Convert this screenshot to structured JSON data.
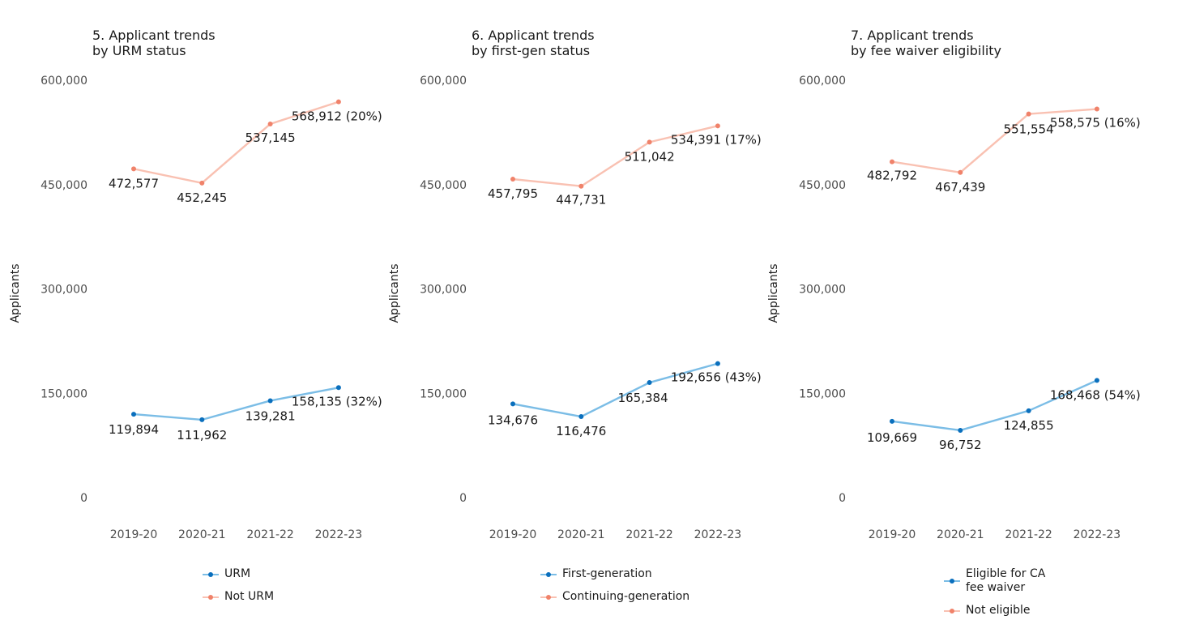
{
  "chart_data": [
    {
      "type": "line",
      "title": "5. Applicant trends\nby URM status",
      "xlabel": "",
      "ylabel": "Applicants",
      "categories": [
        "2019-20",
        "2020-21",
        "2021-22",
        "2022-23"
      ],
      "ylim": [
        0,
        600000
      ],
      "yticks": [
        0,
        150000,
        300000,
        450000,
        600000
      ],
      "ytick_labels": [
        "0",
        "150,000",
        "300,000",
        "450,000",
        "600,000"
      ],
      "series": [
        {
          "name": "URM",
          "color": "#7bbde6",
          "marker_color": "#0a6fbd",
          "values": [
            119894,
            111962,
            139281,
            158135
          ],
          "labels": [
            "119,894",
            "111,962",
            "139,281",
            "158,135 (32%)"
          ]
        },
        {
          "name": "Not URM",
          "color": "#f9c1b2",
          "marker_color": "#f0826a",
          "values": [
            472577,
            452245,
            537145,
            568912
          ],
          "labels": [
            "472,577",
            "452,245",
            "537,145",
            "568,912 (20%)"
          ]
        }
      ],
      "legend": "bottom"
    },
    {
      "type": "line",
      "title": "6. Applicant trends\nby first-gen status",
      "xlabel": "",
      "ylabel": "Applicants",
      "categories": [
        "2019-20",
        "2020-21",
        "2021-22",
        "2022-23"
      ],
      "ylim": [
        0,
        600000
      ],
      "yticks": [
        0,
        150000,
        300000,
        450000,
        600000
      ],
      "ytick_labels": [
        "0",
        "150,000",
        "300,000",
        "450,000",
        "600,000"
      ],
      "series": [
        {
          "name": "First-generation",
          "color": "#7bbde6",
          "marker_color": "#0a6fbd",
          "values": [
            134676,
            116476,
            165384,
            192656
          ],
          "labels": [
            "134,676",
            "116,476",
            "165,384",
            "192,656 (43%)"
          ]
        },
        {
          "name": "Continuing-generation",
          "color": "#f9c1b2",
          "marker_color": "#f0826a",
          "values": [
            457795,
            447731,
            511042,
            534391
          ],
          "labels": [
            "457,795",
            "447,731",
            "511,042",
            "534,391 (17%)"
          ]
        }
      ],
      "legend": "bottom"
    },
    {
      "type": "line",
      "title": "7. Applicant trends\nby fee waiver eligibility",
      "xlabel": "",
      "ylabel": "Applicants",
      "categories": [
        "2019-20",
        "2020-21",
        "2021-22",
        "2022-23"
      ],
      "ylim": [
        0,
        600000
      ],
      "yticks": [
        0,
        150000,
        300000,
        450000,
        600000
      ],
      "ytick_labels": [
        "0",
        "150,000",
        "300,000",
        "450,000",
        "600,000"
      ],
      "series": [
        {
          "name": "Eligible for CA\nfee waiver",
          "color": "#7bbde6",
          "marker_color": "#0a6fbd",
          "values": [
            109669,
            96752,
            124855,
            168468
          ],
          "labels": [
            "109,669",
            "96,752",
            "124,855",
            "168,468 (54%)"
          ]
        },
        {
          "name": "Not eligible",
          "color": "#f9c1b2",
          "marker_color": "#f0826a",
          "values": [
            482792,
            467439,
            551554,
            558575
          ],
          "labels": [
            "482,792",
            "467,439",
            "551,554",
            "558,575 (16%)"
          ]
        }
      ],
      "legend": "bottom"
    }
  ]
}
